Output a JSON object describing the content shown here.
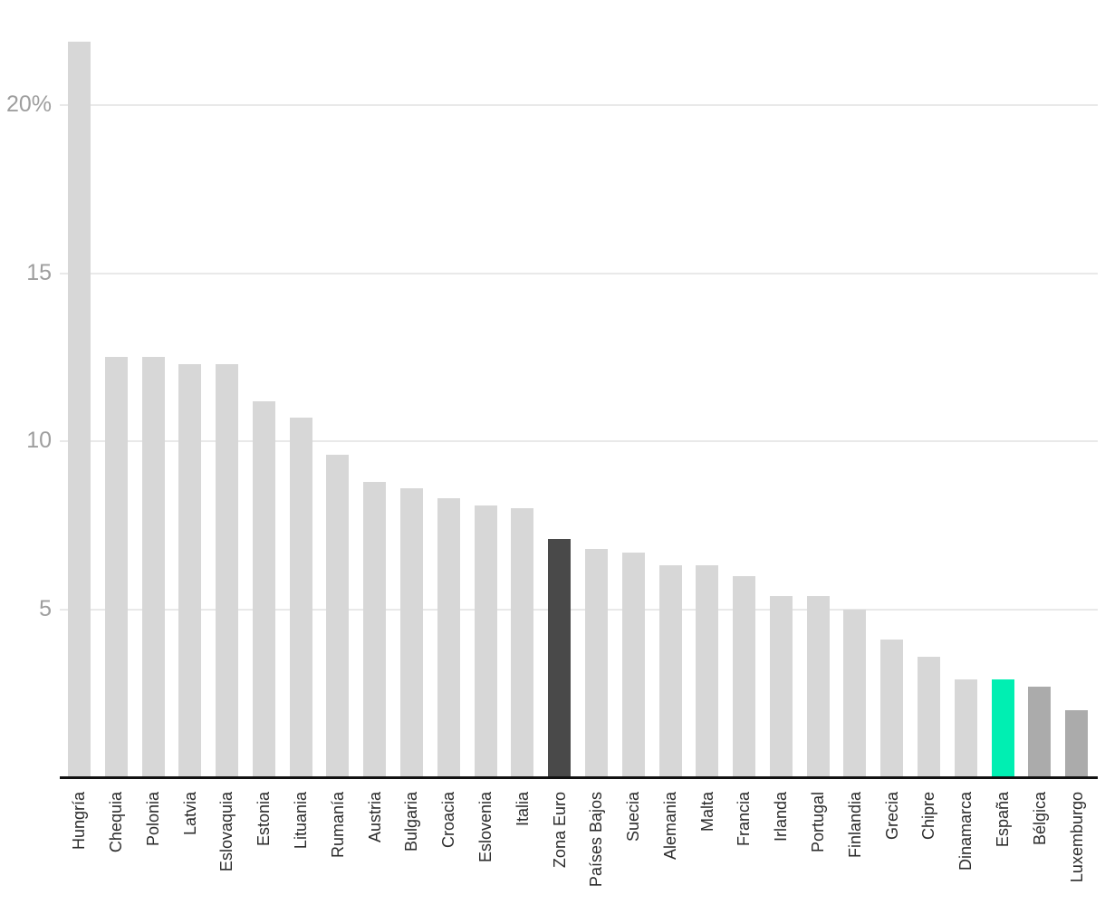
{
  "chart_data": {
    "type": "bar",
    "title": "",
    "xlabel": "",
    "ylabel": "",
    "unit": "%",
    "ylim": [
      0,
      22
    ],
    "grid": "horizontal",
    "legend": "none",
    "categories": [
      "Hungría",
      "Chequia",
      "Polonia",
      "Latvia",
      "Eslovaquia",
      "Estonia",
      "Lituania",
      "Rumanía",
      "Austria",
      "Bulgaria",
      "Croacia",
      "Eslovenia",
      "Italia",
      "Zona Euro",
      "Países Bajos",
      "Suecia",
      "Alemania",
      "Malta",
      "Francia",
      "Irlanda",
      "Portugal",
      "Finlandia",
      "Grecia",
      "Chipre",
      "Dinamarca",
      "España",
      "Bélgica",
      "Luxemburgo"
    ],
    "values": [
      21.9,
      12.5,
      12.5,
      12.3,
      12.3,
      11.2,
      10.7,
      9.6,
      8.8,
      8.6,
      8.3,
      8.1,
      8.0,
      7.1,
      6.8,
      6.7,
      6.3,
      6.3,
      6.0,
      5.4,
      5.4,
      5.0,
      4.1,
      3.6,
      2.9,
      2.9,
      2.7,
      2.0
    ],
    "bar_styles": [
      "default",
      "default",
      "default",
      "default",
      "default",
      "default",
      "default",
      "default",
      "default",
      "default",
      "default",
      "default",
      "default",
      "dark",
      "default",
      "default",
      "default",
      "default",
      "default",
      "default",
      "default",
      "default",
      "default",
      "default",
      "default",
      "accent",
      "medium",
      "medium"
    ],
    "yticks": [
      {
        "value": 5,
        "label": "5"
      },
      {
        "value": 10,
        "label": "10"
      },
      {
        "value": 15,
        "label": "15"
      },
      {
        "value": 20,
        "label": "20%"
      }
    ]
  },
  "colors": {
    "background": "#ffffff",
    "bar_default": "#d7d7d7",
    "bar_dark": "#494949",
    "bar_accent": "#00efb2",
    "bar_medium": "#ababab",
    "gridline": "#e9e9e9",
    "axis": "#111111",
    "tick_label": "#9e9e9e",
    "category_label": "#2b2b2b"
  }
}
